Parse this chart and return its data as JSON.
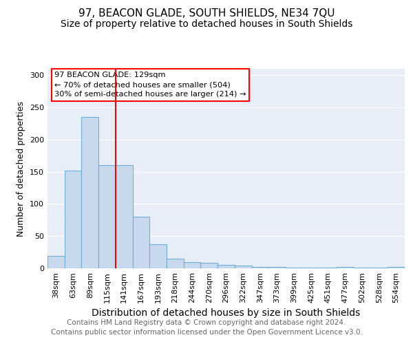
{
  "title": "97, BEACON GLADE, SOUTH SHIELDS, NE34 7QU",
  "subtitle": "Size of property relative to detached houses in South Shields",
  "xlabel": "Distribution of detached houses by size in South Shields",
  "ylabel": "Number of detached properties",
  "categories": [
    "38sqm",
    "63sqm",
    "89sqm",
    "115sqm",
    "141sqm",
    "167sqm",
    "193sqm",
    "218sqm",
    "244sqm",
    "270sqm",
    "296sqm",
    "322sqm",
    "347sqm",
    "373sqm",
    "399sqm",
    "425sqm",
    "451sqm",
    "477sqm",
    "502sqm",
    "528sqm",
    "554sqm"
  ],
  "values": [
    19,
    152,
    235,
    160,
    160,
    80,
    37,
    15,
    10,
    9,
    5,
    4,
    2,
    2,
    1,
    1,
    1,
    2,
    1,
    1,
    2
  ],
  "bar_color": "#c8d9ee",
  "bar_edge_color": "#6baed6",
  "vline_x": 3.5,
  "vline_color": "red",
  "annotation_text": "97 BEACON GLADE: 129sqm\n← 70% of detached houses are smaller (504)\n30% of semi-detached houses are larger (214) →",
  "annotation_box_color": "white",
  "annotation_box_edge_color": "red",
  "footer_text": "Contains HM Land Registry data © Crown copyright and database right 2024.\nContains public sector information licensed under the Open Government Licence v3.0.",
  "ylim": [
    0,
    310
  ],
  "yticks": [
    0,
    50,
    100,
    150,
    200,
    250,
    300
  ],
  "background_color": "#e8eef8",
  "title_fontsize": 11,
  "subtitle_fontsize": 10,
  "axis_label_fontsize": 9,
  "tick_fontsize": 8,
  "footer_fontsize": 7.5
}
